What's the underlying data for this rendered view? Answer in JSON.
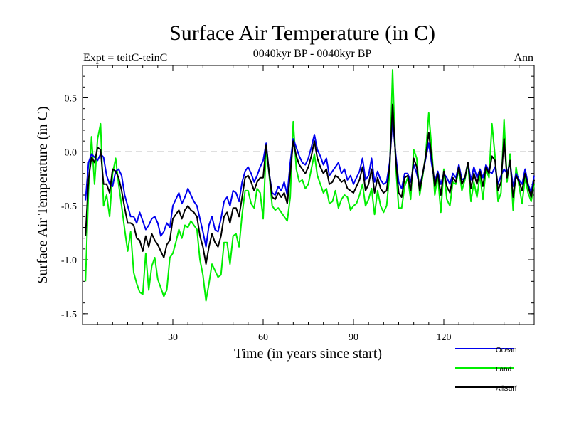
{
  "chart_data": {
    "type": "line",
    "title": "Surface Air Temperature (in C)",
    "subtitle_left": "Expt = teitC-teinC",
    "subtitle_center": "0040kyr BP - 0040kyr BP",
    "subtitle_right": "Ann",
    "xlabel": "Time (in years since start)",
    "ylabel": "Surface Air Temperature (in C)",
    "xlim": [
      0,
      150
    ],
    "ylim": [
      -1.6,
      0.8
    ],
    "x_ticks": [
      30,
      60,
      90,
      120
    ],
    "x_tick_labels": [
      "30",
      "60",
      "90",
      "120"
    ],
    "y_ticks": [
      -1.5,
      -1.0,
      -0.5,
      0.0,
      0.5
    ],
    "y_tick_labels": [
      "-1.5",
      "-1.0",
      "-0.5",
      "0.0",
      "0.5"
    ],
    "reference_line": 0.0,
    "legend_position": "bottom-right",
    "x": [
      1,
      2,
      3,
      4,
      5,
      6,
      7,
      8,
      9,
      10,
      11,
      12,
      13,
      14,
      15,
      16,
      17,
      18,
      19,
      20,
      21,
      22,
      23,
      24,
      25,
      26,
      27,
      28,
      29,
      30,
      31,
      32,
      33,
      34,
      35,
      36,
      37,
      38,
      39,
      40,
      41,
      42,
      43,
      44,
      45,
      46,
      47,
      48,
      49,
      50,
      51,
      52,
      53,
      54,
      55,
      56,
      57,
      58,
      59,
      60,
      61,
      62,
      63,
      64,
      65,
      66,
      67,
      68,
      69,
      70,
      71,
      72,
      73,
      74,
      75,
      76,
      77,
      78,
      79,
      80,
      81,
      82,
      83,
      84,
      85,
      86,
      87,
      88,
      89,
      90,
      91,
      92,
      93,
      94,
      95,
      96,
      97,
      98,
      99,
      100,
      101,
      102,
      103,
      104,
      105,
      106,
      107,
      108,
      109,
      110,
      111,
      112,
      113,
      114,
      115,
      116,
      117,
      118,
      119,
      120,
      121,
      122,
      123,
      124,
      125,
      126,
      127,
      128,
      129,
      130,
      131,
      132,
      133,
      134,
      135,
      136,
      137,
      138,
      139,
      140,
      141,
      142,
      143,
      144,
      145,
      146,
      147,
      148,
      149,
      150
    ],
    "series": [
      {
        "name": "Ocean",
        "color": "#0000ee",
        "values": [
          -0.45,
          -0.1,
          -0.02,
          -0.05,
          -0.08,
          -0.02,
          -0.05,
          -0.22,
          -0.3,
          -0.32,
          -0.18,
          -0.16,
          -0.22,
          -0.4,
          -0.5,
          -0.6,
          -0.6,
          -0.66,
          -0.56,
          -0.64,
          -0.72,
          -0.68,
          -0.62,
          -0.6,
          -0.66,
          -0.78,
          -0.74,
          -0.66,
          -0.7,
          -0.5,
          -0.44,
          -0.38,
          -0.48,
          -0.42,
          -0.34,
          -0.4,
          -0.46,
          -0.5,
          -0.62,
          -0.74,
          -0.88,
          -0.68,
          -0.6,
          -0.72,
          -0.74,
          -0.62,
          -0.46,
          -0.42,
          -0.5,
          -0.36,
          -0.38,
          -0.46,
          -0.28,
          -0.18,
          -0.14,
          -0.2,
          -0.28,
          -0.22,
          -0.14,
          -0.08,
          0.08,
          -0.2,
          -0.38,
          -0.4,
          -0.32,
          -0.36,
          -0.28,
          -0.4,
          -0.1,
          0.12,
          0.04,
          -0.04,
          -0.1,
          -0.12,
          -0.06,
          0.04,
          0.16,
          0.02,
          -0.04,
          -0.12,
          -0.06,
          -0.22,
          -0.18,
          -0.14,
          -0.1,
          -0.2,
          -0.16,
          -0.26,
          -0.22,
          -0.3,
          -0.24,
          -0.18,
          -0.06,
          -0.26,
          -0.22,
          -0.06,
          -0.28,
          -0.18,
          -0.26,
          -0.3,
          -0.28,
          -0.1,
          0.3,
          -0.02,
          -0.28,
          -0.34,
          -0.2,
          -0.2,
          -0.28,
          -0.12,
          -0.2,
          -0.32,
          -0.2,
          -0.06,
          0.08,
          -0.12,
          -0.28,
          -0.18,
          -0.3,
          -0.2,
          -0.24,
          -0.3,
          -0.2,
          -0.24,
          -0.12,
          -0.26,
          -0.24,
          -0.1,
          -0.26,
          -0.14,
          -0.24,
          -0.16,
          -0.24,
          -0.12,
          -0.18,
          -0.2,
          -0.14,
          -0.3,
          -0.22,
          -0.16,
          -0.2,
          -0.1,
          -0.32,
          -0.2,
          -0.26,
          -0.3,
          -0.16,
          -0.3,
          -0.38,
          -0.22
        ]
      },
      {
        "name": "Land",
        "color": "#00ee00",
        "values": [
          -1.2,
          -0.35,
          0.14,
          -0.3,
          0.12,
          0.26,
          -0.5,
          -0.4,
          -0.6,
          -0.2,
          -0.06,
          -0.3,
          -0.5,
          -0.72,
          -0.92,
          -0.74,
          -1.12,
          -1.22,
          -1.3,
          -1.32,
          -0.94,
          -1.28,
          -1.06,
          -0.98,
          -1.18,
          -1.26,
          -1.34,
          -1.28,
          -0.98,
          -0.94,
          -0.84,
          -0.72,
          -0.8,
          -0.68,
          -0.7,
          -0.64,
          -0.68,
          -0.72,
          -1.0,
          -1.14,
          -1.38,
          -1.22,
          -1.04,
          -1.1,
          -1.16,
          -1.14,
          -0.84,
          -0.84,
          -1.04,
          -0.78,
          -0.76,
          -0.88,
          -0.58,
          -0.36,
          -0.36,
          -0.48,
          -0.52,
          -0.34,
          -0.38,
          -0.62,
          0.04,
          -0.22,
          -0.5,
          -0.54,
          -0.52,
          -0.56,
          -0.6,
          -0.64,
          -0.42,
          0.28,
          -0.16,
          -0.28,
          -0.26,
          -0.34,
          -0.3,
          -0.16,
          -0.02,
          -0.22,
          -0.3,
          -0.38,
          -0.34,
          -0.48,
          -0.46,
          -0.36,
          -0.52,
          -0.44,
          -0.4,
          -0.42,
          -0.54,
          -0.5,
          -0.48,
          -0.4,
          -0.3,
          -0.5,
          -0.44,
          -0.34,
          -0.58,
          -0.36,
          -0.5,
          -0.56,
          -0.5,
          -0.2,
          0.76,
          -0.12,
          -0.52,
          -0.52,
          -0.32,
          -0.24,
          -0.44,
          0.02,
          -0.06,
          -0.4,
          -0.22,
          -0.02,
          0.36,
          0.02,
          -0.4,
          -0.22,
          -0.56,
          -0.16,
          -0.44,
          -0.5,
          -0.28,
          -0.3,
          -0.16,
          -0.36,
          -0.26,
          -0.1,
          -0.46,
          -0.28,
          -0.42,
          -0.22,
          -0.44,
          -0.16,
          -0.24,
          0.26,
          -0.04,
          -0.46,
          -0.38,
          0.3,
          -0.28,
          -0.02,
          -0.54,
          -0.14,
          -0.32,
          -0.48,
          -0.24,
          -0.38,
          -0.46,
          -0.3
        ]
      },
      {
        "name": "AllSurf",
        "color": "#000000",
        "values": [
          -0.78,
          -0.25,
          -0.05,
          -0.1,
          0.04,
          0.02,
          -0.3,
          -0.3,
          -0.38,
          -0.16,
          -0.18,
          -0.24,
          -0.36,
          -0.52,
          -0.66,
          -0.66,
          -0.68,
          -0.8,
          -0.82,
          -0.92,
          -0.78,
          -0.88,
          -0.76,
          -0.82,
          -0.86,
          -0.92,
          -0.98,
          -0.86,
          -0.82,
          -0.62,
          -0.58,
          -0.54,
          -0.62,
          -0.54,
          -0.5,
          -0.54,
          -0.56,
          -0.6,
          -0.78,
          -0.88,
          -1.04,
          -0.88,
          -0.76,
          -0.84,
          -0.88,
          -0.78,
          -0.6,
          -0.56,
          -0.66,
          -0.52,
          -0.52,
          -0.6,
          -0.42,
          -0.24,
          -0.22,
          -0.28,
          -0.36,
          -0.28,
          -0.24,
          -0.24,
          0.06,
          -0.2,
          -0.42,
          -0.44,
          -0.38,
          -0.42,
          -0.38,
          -0.48,
          -0.2,
          0.1,
          -0.04,
          -0.12,
          -0.16,
          -0.2,
          -0.14,
          -0.04,
          0.1,
          -0.06,
          -0.14,
          -0.2,
          -0.16,
          -0.3,
          -0.28,
          -0.22,
          -0.24,
          -0.28,
          -0.26,
          -0.34,
          -0.36,
          -0.38,
          -0.32,
          -0.26,
          -0.14,
          -0.36,
          -0.3,
          -0.16,
          -0.38,
          -0.24,
          -0.34,
          -0.38,
          -0.36,
          -0.14,
          0.44,
          -0.06,
          -0.38,
          -0.42,
          -0.24,
          -0.22,
          -0.36,
          -0.06,
          -0.14,
          -0.36,
          -0.2,
          -0.04,
          0.18,
          -0.06,
          -0.32,
          -0.2,
          -0.4,
          -0.18,
          -0.32,
          -0.38,
          -0.24,
          -0.28,
          -0.14,
          -0.3,
          -0.24,
          -0.1,
          -0.34,
          -0.2,
          -0.3,
          -0.18,
          -0.32,
          -0.14,
          -0.2,
          -0.04,
          -0.08,
          -0.36,
          -0.28,
          0.12,
          -0.24,
          -0.08,
          -0.42,
          -0.22,
          -0.28,
          -0.36,
          -0.2,
          -0.32,
          -0.42,
          -0.26
        ]
      }
    ]
  }
}
